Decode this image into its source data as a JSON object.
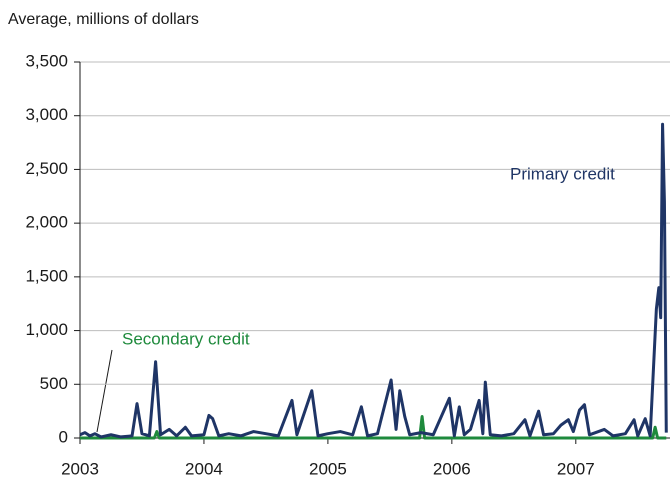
{
  "chart_data": {
    "type": "line",
    "subtitle": "Average, millions of dollars",
    "xlim": [
      2003,
      2007.76
    ],
    "xticks": [
      2003,
      2004,
      2005,
      2006,
      2007
    ],
    "ylim": [
      0,
      3500
    ],
    "yticks": [
      0,
      500,
      {
        "value": 1000,
        "label": "1,000"
      },
      {
        "value": 1500,
        "label": "1,500"
      },
      {
        "value": 2000,
        "label": "2,000"
      },
      {
        "value": 2500,
        "label": "2,500"
      },
      {
        "value": 3000,
        "label": "3,000"
      },
      {
        "value": 3500,
        "label": "3,500"
      }
    ],
    "grid": true,
    "series": [
      {
        "name": "Primary credit",
        "color": "#1f3566",
        "x": [
          2003.0,
          2003.04,
          2003.08,
          2003.12,
          2003.17,
          2003.25,
          2003.33,
          2003.42,
          2003.46,
          2003.5,
          2003.56,
          2003.61,
          2003.65,
          2003.72,
          2003.78,
          2003.85,
          2003.9,
          2004.0,
          2004.04,
          2004.07,
          2004.12,
          2004.2,
          2004.3,
          2004.4,
          2004.5,
          2004.6,
          2004.71,
          2004.75,
          2004.87,
          2004.92,
          2005.0,
          2005.1,
          2005.2,
          2005.27,
          2005.32,
          2005.4,
          2005.51,
          2005.55,
          2005.58,
          2005.62,
          2005.66,
          2005.75,
          2005.85,
          2005.98,
          2006.02,
          2006.06,
          2006.1,
          2006.15,
          2006.22,
          2006.25,
          2006.27,
          2006.31,
          2006.4,
          2006.5,
          2006.59,
          2006.63,
          2006.7,
          2006.74,
          2006.82,
          2006.88,
          2006.94,
          2006.98,
          2007.03,
          2007.07,
          2007.11,
          2007.23,
          2007.3,
          2007.4,
          2007.47,
          2007.5,
          2007.56,
          2007.6,
          2007.65,
          2007.67,
          2007.685,
          2007.7,
          2007.715,
          2007.73
        ],
        "values": [
          30,
          50,
          20,
          40,
          10,
          30,
          10,
          20,
          320,
          40,
          20,
          710,
          30,
          80,
          20,
          100,
          20,
          30,
          210,
          180,
          20,
          40,
          20,
          60,
          40,
          20,
          350,
          30,
          440,
          20,
          40,
          60,
          30,
          290,
          20,
          40,
          540,
          80,
          440,
          200,
          30,
          50,
          30,
          370,
          20,
          290,
          30,
          80,
          350,
          40,
          520,
          30,
          20,
          40,
          170,
          20,
          250,
          30,
          40,
          120,
          170,
          60,
          260,
          310,
          30,
          80,
          20,
          40,
          170,
          20,
          180,
          20,
          1200,
          1400,
          1120,
          2920,
          2200,
          50
        ]
      },
      {
        "name": "Secondary credit",
        "color": "#1e8a3c",
        "x": [
          2003.0,
          2003.6,
          2003.62,
          2003.64,
          2005.74,
          2005.76,
          2005.78,
          2007.62,
          2007.64,
          2007.66,
          2007.73
        ],
        "values": [
          0,
          0,
          60,
          0,
          0,
          200,
          0,
          0,
          100,
          0,
          0
        ]
      }
    ]
  }
}
